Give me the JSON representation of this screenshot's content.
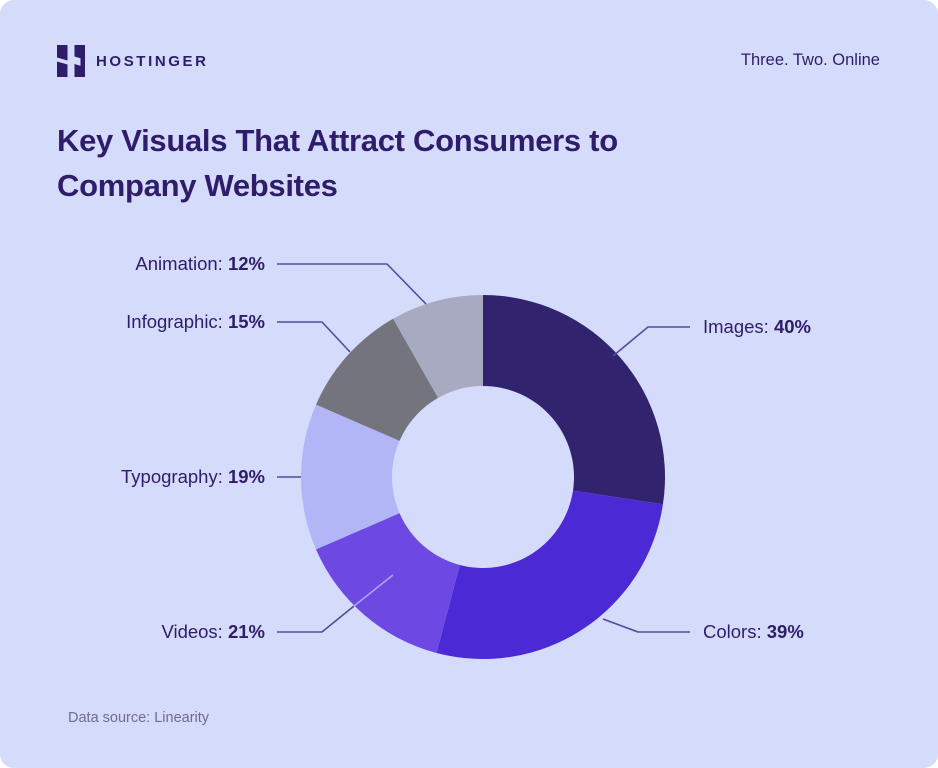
{
  "page": {
    "background": "#D5DBFA",
    "accent_dark": "#2F1C6A"
  },
  "header": {
    "brand": "HOSTINGER",
    "logo_icon": "hostinger-h-logo",
    "tagline": "Three. Two. Online"
  },
  "title": {
    "line1": "Key Visuals That Attract Consumers to",
    "line2": "Company Websites"
  },
  "footer": {
    "source": "Data source: Linearity"
  },
  "chart_data": {
    "type": "pie",
    "variant": "donut",
    "title": "Key Visuals That Attract Consumers to Company Websites",
    "unit": "%",
    "start_angle_deg": 0,
    "direction": "clockwise",
    "inner_radius_ratio": 0.5,
    "legend_position": "callout-labels",
    "slices": [
      {
        "name": "Images",
        "value": 40,
        "color": "#32236F"
      },
      {
        "name": "Colors",
        "value": 39,
        "color": "#4B2AD5"
      },
      {
        "name": "Videos",
        "value": 21,
        "color": "#6D48E2"
      },
      {
        "name": "Typography",
        "value": 19,
        "color": "#B2B6F7"
      },
      {
        "name": "Infographic",
        "value": 15,
        "color": "#74747E"
      },
      {
        "name": "Animation",
        "value": 12,
        "color": "#A7AAC0"
      }
    ],
    "connector_color": "#544A9C",
    "connector_light_color": "#ACA7EC"
  }
}
